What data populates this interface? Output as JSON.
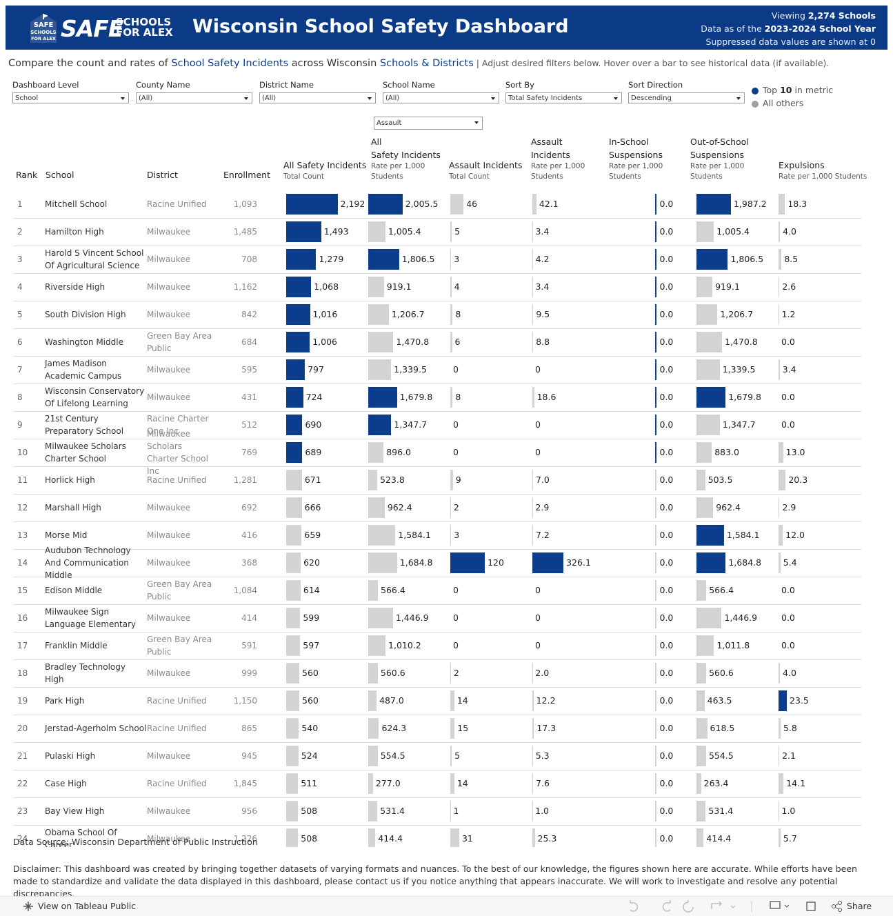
{
  "header": {
    "logo": {
      "badge": [
        "SAFE",
        "SCHOOLS",
        "FOR ALEX"
      ],
      "word": "SAFE",
      "tag": [
        "SCHOOLS",
        "FOR ALEX"
      ]
    },
    "title": "Wisconsin School Safety Dashboard",
    "status": [
      [
        "Viewing ",
        "2,274 Schools"
      ],
      [
        "Data as of the ",
        "2023-2024 School Year"
      ],
      [
        "Suppressed data values are shown at 0"
      ]
    ]
  },
  "intro": [
    "Compare the count and rates of ",
    "School Safety Incidents",
    " across Wisconsin ",
    "Schools & Districts",
    " | Adjust desired filters below. Hover over a bar to see historical data (if available)."
  ],
  "filters": [
    {
      "label": "Dashboard Level",
      "value": "School"
    },
    {
      "label": "County Name",
      "value": "(All)"
    },
    {
      "label": "District Name",
      "value": "(All)"
    },
    {
      "label": "School Name",
      "value": "(All)"
    },
    {
      "label": "Sort By",
      "value": "Total Safety Incidents"
    },
    {
      "label": "Sort Direction",
      "value": "Descending"
    }
  ],
  "metric_filter": "Assault",
  "legend": [
    {
      "parts": [
        "Top ",
        "10",
        " in metric"
      ],
      "color": "#0c3c8c"
    },
    {
      "parts": [
        "All others"
      ],
      "color": "#a0a0a0"
    }
  ],
  "table": {
    "headers": [
      "Rank",
      "School",
      "District",
      "Enrollment"
    ],
    "columns": [
      {
        "title": [
          "All Safety Incidents"
        ],
        "subtitle": "Total Count",
        "xlim": [
          0,
          3500
        ],
        "colors": [
          "#0c3c8c",
          "#0c3c8c",
          "#0c3c8c",
          "#0c3c8c",
          "#0c3c8c",
          "#0c3c8c",
          "#0c3c8c",
          "#0c3c8c",
          "#0c3c8c",
          "#0c3c8c",
          "#d3d3d3",
          "#d3d3d3",
          "#d3d3d3",
          "#d3d3d3",
          "#d3d3d3",
          "#d3d3d3",
          "#d3d3d3",
          "#d3d3d3",
          "#d3d3d3",
          "#d3d3d3",
          "#d3d3d3",
          "#d3d3d3",
          "#d3d3d3",
          "#d3d3d3"
        ]
      },
      {
        "title": [
          "All",
          "Safety Incidents"
        ],
        "subtitle": "Rate per 1,000 Students",
        "xlim": [
          0,
          4800
        ],
        "colors": [
          "#0c3c8c",
          "#d3d3d3",
          "#0c3c8c",
          "#d3d3d3",
          "#d3d3d3",
          "#d3d3d3",
          "#d3d3d3",
          "#0c3c8c",
          "#0c3c8c",
          "#d3d3d3",
          "#d3d3d3",
          "#d3d3d3",
          "#d3d3d3",
          "#d3d3d3",
          "#d3d3d3",
          "#d3d3d3",
          "#d3d3d3",
          "#d3d3d3",
          "#d3d3d3",
          "#d3d3d3",
          "#d3d3d3",
          "#d3d3d3",
          "#d3d3d3",
          "#d3d3d3"
        ]
      },
      {
        "title": [
          "Assault Incidents"
        ],
        "subtitle": "Total Count",
        "xlim": [
          0,
          285
        ],
        "colors": [
          "#d3d3d3",
          "#d3d3d3",
          "#d3d3d3",
          "#d3d3d3",
          "#d3d3d3",
          "#d3d3d3",
          "#d3d3d3",
          "#d3d3d3",
          "#d3d3d3",
          "#d3d3d3",
          "#d3d3d3",
          "#d3d3d3",
          "#d3d3d3",
          "#0c3c8c",
          "#d3d3d3",
          "#d3d3d3",
          "#d3d3d3",
          "#d3d3d3",
          "#d3d3d3",
          "#d3d3d3",
          "#d3d3d3",
          "#d3d3d3",
          "#d3d3d3",
          "#d3d3d3"
        ]
      },
      {
        "title": [
          "Assault",
          "Incidents"
        ],
        "subtitle": "Rate per 1,000 Students",
        "xlim": [
          0,
          860
        ],
        "colors": [
          "#d3d3d3",
          "#d3d3d3",
          "#d3d3d3",
          "#d3d3d3",
          "#d3d3d3",
          "#d3d3d3",
          "#d3d3d3",
          "#d3d3d3",
          "#d3d3d3",
          "#d3d3d3",
          "#d3d3d3",
          "#d3d3d3",
          "#d3d3d3",
          "#0c3c8c",
          "#d3d3d3",
          "#d3d3d3",
          "#d3d3d3",
          "#d3d3d3",
          "#d3d3d3",
          "#d3d3d3",
          "#d3d3d3",
          "#d3d3d3",
          "#d3d3d3",
          "#d3d3d3"
        ]
      },
      {
        "title": [
          "In-School",
          "Suspensions"
        ],
        "subtitle": "Rate per 1,000 Students",
        "xlim": [
          -1,
          1
        ],
        "colors": [
          "#0c3c8c",
          "#0c3c8c",
          "#0c3c8c",
          "#0c3c8c",
          "#0c3c8c",
          "#0c3c8c",
          "#0c3c8c",
          "#0c3c8c",
          "#0c3c8c",
          "#0c3c8c",
          "#d3d3d3",
          "#d3d3d3",
          "#d3d3d3",
          "#d3d3d3",
          "#d3d3d3",
          "#d3d3d3",
          "#d3d3d3",
          "#d3d3d3",
          "#d3d3d3",
          "#d3d3d3",
          "#d3d3d3",
          "#d3d3d3",
          "#d3d3d3",
          "#d3d3d3"
        ]
      },
      {
        "title": [
          "Out-of-School",
          "Suspensions"
        ],
        "subtitle": "Rate per 1,000 Students",
        "xlim": [
          0,
          4730
        ],
        "colors": [
          "#0c3c8c",
          "#d3d3d3",
          "#0c3c8c",
          "#d3d3d3",
          "#d3d3d3",
          "#d3d3d3",
          "#d3d3d3",
          "#0c3c8c",
          "#d3d3d3",
          "#d3d3d3",
          "#d3d3d3",
          "#d3d3d3",
          "#0c3c8c",
          "#0c3c8c",
          "#d3d3d3",
          "#d3d3d3",
          "#d3d3d3",
          "#d3d3d3",
          "#d3d3d3",
          "#d3d3d3",
          "#d3d3d3",
          "#d3d3d3",
          "#d3d3d3",
          "#d3d3d3"
        ]
      },
      {
        "title": [
          "Expulsions"
        ],
        "subtitle": "Rate per 1,000 Students",
        "xlim": [
          0,
          233
        ],
        "colors": [
          "#d3d3d3",
          "#d3d3d3",
          "#d3d3d3",
          "#d3d3d3",
          "#d3d3d3",
          "#d3d3d3",
          "#d3d3d3",
          "#d3d3d3",
          "#d3d3d3",
          "#d3d3d3",
          "#d3d3d3",
          "#d3d3d3",
          "#d3d3d3",
          "#d3d3d3",
          "#d3d3d3",
          "#d3d3d3",
          "#d3d3d3",
          "#d3d3d3",
          "#0c3c8c",
          "#d3d3d3",
          "#d3d3d3",
          "#d3d3d3",
          "#d3d3d3",
          "#d3d3d3"
        ]
      }
    ],
    "rows": [
      {
        "rank": 1,
        "school": "Mitchell School",
        "district": "Racine Unified",
        "enrollment": "1,093",
        "cells": [
          {
            "value": 2192,
            "label": "2,192"
          },
          {
            "value": 2005.5,
            "label": "2,005.5"
          },
          46,
          42.1,
          {
            "value": 0,
            "label": "0.0"
          },
          {
            "value": 1987.2,
            "label": "1,987.2"
          },
          18.3
        ]
      },
      {
        "rank": 2,
        "school": "Hamilton High",
        "district": "Milwaukee",
        "enrollment": "1,485",
        "cells": [
          {
            "value": 1493,
            "label": "1,493"
          },
          {
            "value": 1005.4,
            "label": "1,005.4"
          },
          5,
          3.4,
          {
            "value": 0,
            "label": "0.0"
          },
          {
            "value": 1005.4,
            "label": "1,005.4"
          },
          {
            "value": 4,
            "label": "4.0"
          }
        ]
      },
      {
        "rank": 3,
        "school": "Harold S Vincent School Of Agricultural Science",
        "district": "Milwaukee",
        "enrollment": "708",
        "cells": [
          {
            "value": 1279,
            "label": "1,279"
          },
          {
            "value": 1806.5,
            "label": "1,806.5"
          },
          3,
          4.2,
          {
            "value": 0,
            "label": "0.0"
          },
          {
            "value": 1806.5,
            "label": "1,806.5"
          },
          8.5
        ]
      },
      {
        "rank": 4,
        "school": "Riverside High",
        "district": "Milwaukee",
        "enrollment": "1,162",
        "cells": [
          {
            "value": 1068,
            "label": "1,068"
          },
          919.1,
          4,
          3.4,
          {
            "value": 0,
            "label": "0.0"
          },
          919.1,
          2.6
        ]
      },
      {
        "rank": 5,
        "school": "South Division High",
        "district": "Milwaukee",
        "enrollment": "842",
        "cells": [
          {
            "value": 1016,
            "label": "1,016"
          },
          {
            "value": 1206.7,
            "label": "1,206.7"
          },
          8,
          9.5,
          {
            "value": 0,
            "label": "0.0"
          },
          {
            "value": 1206.7,
            "label": "1,206.7"
          },
          1.2
        ]
      },
      {
        "rank": 6,
        "school": "Washington Middle",
        "district": "Green Bay Area Public",
        "enrollment": "684",
        "cells": [
          {
            "value": 1006,
            "label": "1,006"
          },
          {
            "value": 1470.8,
            "label": "1,470.8"
          },
          6,
          8.8,
          {
            "value": 0,
            "label": "0.0"
          },
          {
            "value": 1470.8,
            "label": "1,470.8"
          },
          {
            "value": 0,
            "label": "0.0"
          }
        ]
      },
      {
        "rank": 7,
        "school": "James Madison Academic Campus",
        "district": "Milwaukee",
        "enrollment": "595",
        "cells": [
          797,
          {
            "value": 1339.5,
            "label": "1,339.5"
          },
          0,
          0,
          {
            "value": 0,
            "label": "0.0"
          },
          {
            "value": 1339.5,
            "label": "1,339.5"
          },
          3.4
        ]
      },
      {
        "rank": 8,
        "school": "Wisconsin Conservatory Of Lifelong Learning",
        "district": "Milwaukee",
        "enrollment": "431",
        "cells": [
          724,
          {
            "value": 1679.8,
            "label": "1,679.8"
          },
          8,
          18.6,
          {
            "value": 0,
            "label": "0.0"
          },
          {
            "value": 1679.8,
            "label": "1,679.8"
          },
          {
            "value": 0,
            "label": "0.0"
          }
        ]
      },
      {
        "rank": 9,
        "school": "21st Century Preparatory School",
        "district": "Racine Charter One Inc",
        "enrollment": "512",
        "cells": [
          690,
          {
            "value": 1347.7,
            "label": "1,347.7"
          },
          0,
          0,
          {
            "value": 0,
            "label": "0.0"
          },
          {
            "value": 1347.7,
            "label": "1,347.7"
          },
          {
            "value": 0,
            "label": "0.0"
          }
        ]
      },
      {
        "rank": 10,
        "school": "Milwaukee Scholars Charter School",
        "district": "Milwaukee Scholars Charter School Inc",
        "enrollment": "769",
        "cells": [
          689,
          {
            "value": 896,
            "label": "896.0"
          },
          0,
          0,
          {
            "value": 0,
            "label": "0.0"
          },
          {
            "value": 883,
            "label": "883.0"
          },
          {
            "value": 13,
            "label": "13.0"
          }
        ]
      },
      {
        "rank": 11,
        "school": "Horlick High",
        "district": "Racine Unified",
        "enrollment": "1,281",
        "cells": [
          671,
          523.8,
          9,
          {
            "value": 7,
            "label": "7.0"
          },
          {
            "value": 0,
            "label": "0.0"
          },
          503.5,
          20.3
        ]
      },
      {
        "rank": 12,
        "school": "Marshall High",
        "district": "Milwaukee",
        "enrollment": "692",
        "cells": [
          666,
          962.4,
          2,
          2.9,
          {
            "value": 0,
            "label": "0.0"
          },
          962.4,
          2.9
        ]
      },
      {
        "rank": 13,
        "school": "Morse Mid",
        "district": "Milwaukee",
        "enrollment": "416",
        "cells": [
          659,
          {
            "value": 1584.1,
            "label": "1,584.1"
          },
          3,
          7.2,
          {
            "value": 0,
            "label": "0.0"
          },
          {
            "value": 1584.1,
            "label": "1,584.1"
          },
          {
            "value": 12,
            "label": "12.0"
          }
        ]
      },
      {
        "rank": 14,
        "school": "Audubon Technology And Communication Middle",
        "district": "Milwaukee",
        "enrollment": "368",
        "cells": [
          620,
          {
            "value": 1684.8,
            "label": "1,684.8"
          },
          120,
          326.1,
          {
            "value": 0,
            "label": "0.0"
          },
          {
            "value": 1684.8,
            "label": "1,684.8"
          },
          5.4
        ]
      },
      {
        "rank": 15,
        "school": "Edison Middle",
        "district": "Green Bay Area Public",
        "enrollment": "1,084",
        "cells": [
          614,
          566.4,
          0,
          0,
          {
            "value": 0,
            "label": "0.0"
          },
          566.4,
          {
            "value": 0,
            "label": "0.0"
          }
        ]
      },
      {
        "rank": 16,
        "school": "Milwaukee Sign Language Elementary",
        "district": "Milwaukee",
        "enrollment": "414",
        "cells": [
          599,
          {
            "value": 1446.9,
            "label": "1,446.9"
          },
          0,
          0,
          {
            "value": 0,
            "label": "0.0"
          },
          {
            "value": 1446.9,
            "label": "1,446.9"
          },
          {
            "value": 0,
            "label": "0.0"
          }
        ]
      },
      {
        "rank": 17,
        "school": "Franklin Middle",
        "district": "Green Bay Area Public",
        "enrollment": "591",
        "cells": [
          597,
          {
            "value": 1010.2,
            "label": "1,010.2"
          },
          0,
          0,
          {
            "value": 0,
            "label": "0.0"
          },
          {
            "value": 1011.8,
            "label": "1,011.8"
          },
          {
            "value": 0,
            "label": "0.0"
          }
        ]
      },
      {
        "rank": 18,
        "school": "Bradley Technology High",
        "district": "Milwaukee",
        "enrollment": "999",
        "cells": [
          560,
          560.6,
          2,
          {
            "value": 2,
            "label": "2.0"
          },
          {
            "value": 0,
            "label": "0.0"
          },
          560.6,
          {
            "value": 4,
            "label": "4.0"
          }
        ]
      },
      {
        "rank": 19,
        "school": "Park High",
        "district": "Racine Unified",
        "enrollment": "1,150",
        "cells": [
          560,
          {
            "value": 487,
            "label": "487.0"
          },
          14,
          12.2,
          {
            "value": 0,
            "label": "0.0"
          },
          463.5,
          23.5
        ]
      },
      {
        "rank": 20,
        "school": "Jerstad-Agerholm School",
        "district": "Racine Unified",
        "enrollment": "865",
        "cells": [
          540,
          624.3,
          15,
          17.3,
          {
            "value": 0,
            "label": "0.0"
          },
          618.5,
          5.8
        ]
      },
      {
        "rank": 21,
        "school": "Pulaski High",
        "district": "Milwaukee",
        "enrollment": "945",
        "cells": [
          524,
          554.5,
          5,
          5.3,
          {
            "value": 0,
            "label": "0.0"
          },
          554.5,
          2.1
        ]
      },
      {
        "rank": 22,
        "school": "Case High",
        "district": "Racine Unified",
        "enrollment": "1,845",
        "cells": [
          511,
          {
            "value": 277,
            "label": "277.0"
          },
          14,
          7.6,
          {
            "value": 0,
            "label": "0.0"
          },
          263.4,
          14.1
        ]
      },
      {
        "rank": 23,
        "school": "Bay View High",
        "district": "Milwaukee",
        "enrollment": "956",
        "cells": [
          508,
          531.4,
          1,
          {
            "value": 1,
            "label": "1.0"
          },
          {
            "value": 0,
            "label": "0.0"
          },
          531.4,
          {
            "value": 1,
            "label": "1.0"
          }
        ]
      },
      {
        "rank": 24,
        "school": "Obama School Of Career",
        "district": "Milwaukee",
        "enrollment": "1,226",
        "cells": [
          508,
          414.4,
          31,
          25.3,
          {
            "value": 0,
            "label": "0.0"
          },
          414.4,
          5.7
        ]
      }
    ]
  },
  "footer": {
    "source": "Data Source: Wisconsin Department of Public Instruction",
    "disclaimer": "Disclaimer: This dashboard was created by bringing together datasets of varying formats and nuances. To the best of our knowledge, the figures shown here are accurate. While efforts have been made to standardize and validate the data displayed in this dashboard, please contact us if you notice anything that appears inaccurate. We will work to investigate and resolve any potential discrepancies."
  },
  "toolbar": {
    "view": "View on Tableau Public",
    "share": "Share"
  }
}
